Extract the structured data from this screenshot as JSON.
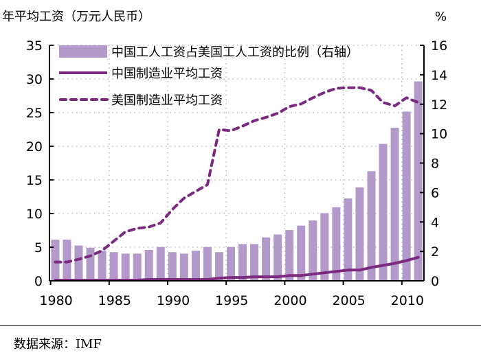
{
  "chart_data": {
    "type": "bar+line",
    "left_axis_title": "年平均工资（万元人民币）",
    "right_axis_title": "%",
    "x": [
      1980,
      1981,
      1982,
      1983,
      1984,
      1985,
      1986,
      1987,
      1988,
      1989,
      1990,
      1991,
      1992,
      1993,
      1994,
      1995,
      1996,
      1997,
      1998,
      1999,
      2000,
      2001,
      2002,
      2003,
      2004,
      2005,
      2006,
      2007,
      2008,
      2009,
      2010,
      2011
    ],
    "xticks": [
      "1980",
      "1985",
      "1990",
      "1995",
      "2000",
      "2005",
      "2010"
    ],
    "ylim_left": [
      0,
      35
    ],
    "yticks_left": [
      "0",
      "5",
      "10",
      "15",
      "20",
      "25",
      "30",
      "35"
    ],
    "ylim_right": [
      0,
      16
    ],
    "yticks_right": [
      "0",
      "2",
      "4",
      "6",
      "8",
      "10",
      "12",
      "14",
      "16"
    ],
    "grid": true,
    "series": [
      {
        "name": "中国工人工资占美国工人工资的比例（右轴）",
        "type": "bar",
        "axis": "right",
        "color": "#b399c9",
        "values": [
          2.8,
          2.8,
          2.4,
          2.25,
          2.05,
          1.95,
          1.85,
          1.85,
          2.1,
          2.3,
          1.95,
          1.85,
          2.05,
          2.3,
          1.95,
          2.3,
          2.5,
          2.5,
          2.95,
          3.15,
          3.45,
          3.75,
          4.1,
          4.6,
          5.0,
          5.6,
          6.35,
          7.45,
          9.3,
          10.4,
          11.5,
          13.55
        ]
      },
      {
        "name": "中国制造业平均工资",
        "type": "line",
        "axis": "left",
        "style": "solid",
        "color": "#7b2a7f",
        "values": [
          0.1,
          0.1,
          0.1,
          0.1,
          0.1,
          0.1,
          0.1,
          0.1,
          0.2,
          0.2,
          0.2,
          0.2,
          0.2,
          0.2,
          0.4,
          0.5,
          0.5,
          0.6,
          0.6,
          0.6,
          0.8,
          0.8,
          1.0,
          1.2,
          1.4,
          1.6,
          1.6,
          2.0,
          2.3,
          2.6,
          3.0,
          3.5
        ]
      },
      {
        "name": "美国制造业平均工资",
        "type": "line",
        "axis": "left",
        "style": "dashed",
        "color": "#7b2a7f",
        "values": [
          2.8,
          2.8,
          3.2,
          3.7,
          4.5,
          5.9,
          7.3,
          7.8,
          8.0,
          8.6,
          10.6,
          12.3,
          13.3,
          14.3,
          22.5,
          22.3,
          23.0,
          23.8,
          24.3,
          24.9,
          25.9,
          26.3,
          27.2,
          28.0,
          28.6,
          28.7,
          28.7,
          28.3,
          26.5,
          26.0,
          27.2,
          26.5
        ]
      }
    ],
    "legend_position": "top-left"
  },
  "footer": {
    "source": "数据来源：IMF"
  }
}
